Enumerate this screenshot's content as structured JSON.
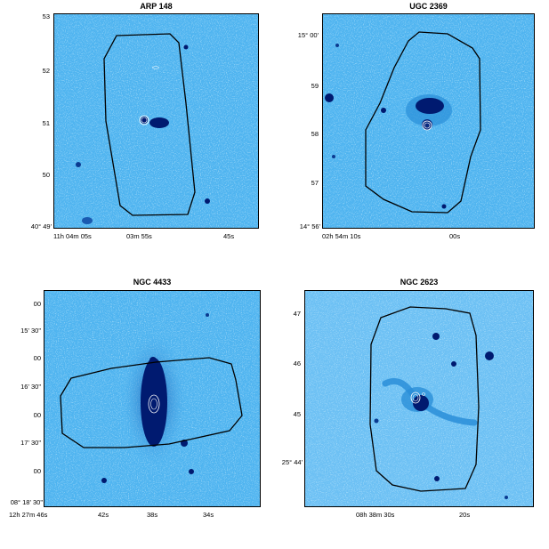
{
  "panels": [
    {
      "id": "arp148",
      "title": "ARP 148",
      "bg": "#4fb4f0",
      "yticks": [
        "53",
        "52",
        "51",
        "50",
        "40° 49'"
      ],
      "xticks": [
        "11h 04m 05s",
        "03m 55s",
        "45s"
      ]
    },
    {
      "id": "ugc2369",
      "title": "UGC 2369",
      "bg": "#4fb4f0",
      "yticks": [
        "15° 00'",
        "59",
        "58",
        "57",
        "14° 56'"
      ],
      "xticks": [
        "02h 54m 10s",
        "00s"
      ]
    },
    {
      "id": "ngc4433",
      "title": "NGC 4433",
      "bg": "#4fb4f0",
      "yticks": [
        "00",
        "15' 30\"",
        "00",
        "16' 30\"",
        "00",
        "17' 30\"",
        "00",
        "08° 18' 30\""
      ],
      "xticks": [
        "12h 27m 46s",
        "42s",
        "38s",
        "34s"
      ]
    },
    {
      "id": "ngc2623",
      "title": "NGC 2623",
      "bg": "#6cc0f4",
      "yticks": [
        "47",
        "46",
        "45",
        "25° 44'"
      ],
      "xticks": [
        "08h 38m 30s",
        "20s"
      ]
    }
  ],
  "colors": {
    "sky": "#4fb4f0",
    "sky_light": "#8cd0f8",
    "sky_dark": "#2a8ed8",
    "source": "#001a70",
    "contour": "#ffffff",
    "outline": "#000000"
  }
}
